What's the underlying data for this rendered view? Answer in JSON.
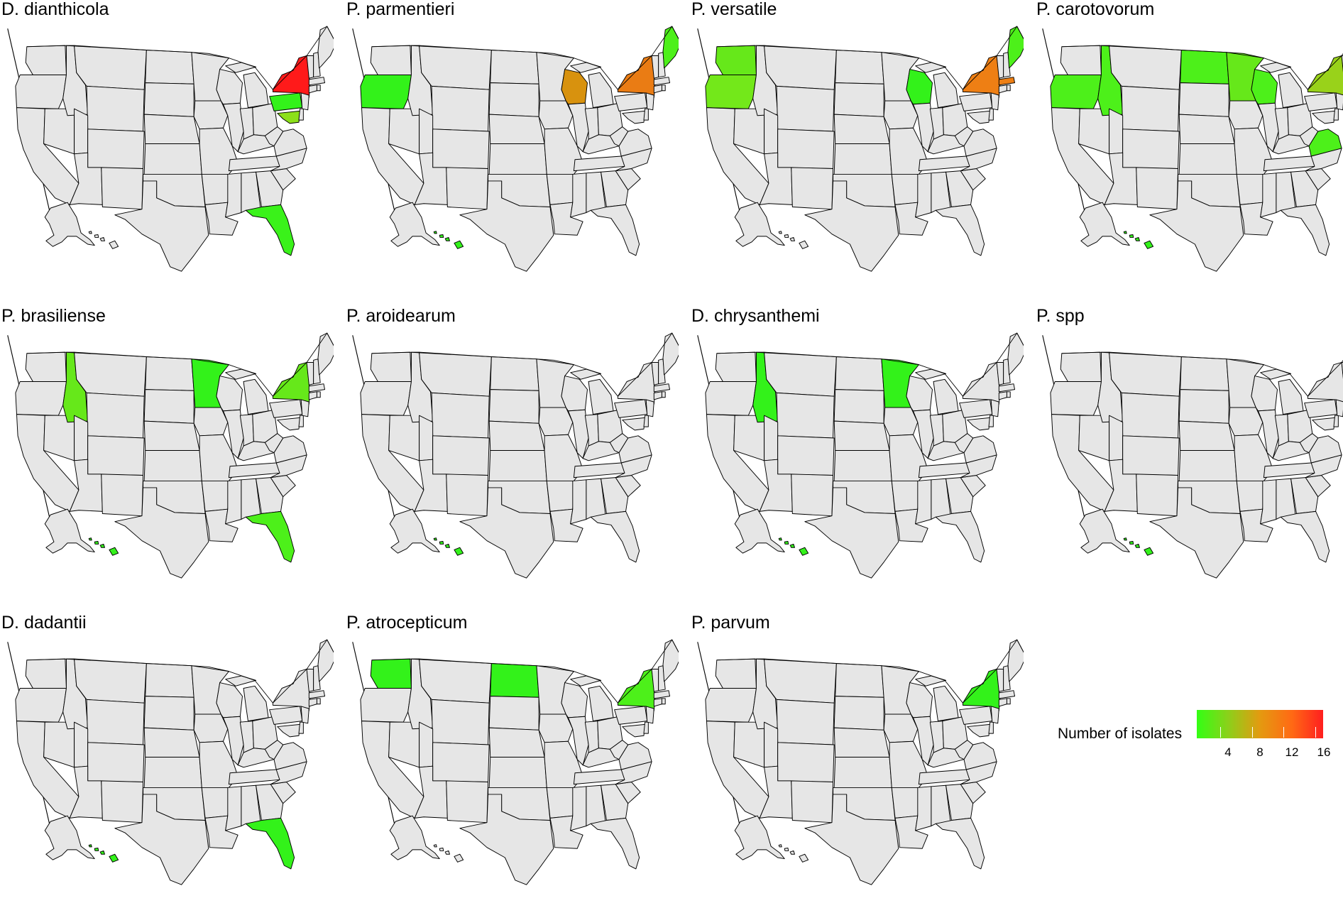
{
  "figure": {
    "panels": [
      {
        "title": "D. dianthicola",
        "states": {
          "NY": "#ff1a1a",
          "PA": "#33f21a",
          "MD": "#8ce01a",
          "FL": "#3af21a"
        }
      },
      {
        "title": "P. parmentieri",
        "states": {
          "OR": "#33f21a",
          "WI": "#d8920e",
          "NY": "#ea7c14",
          "ME": "#4df01a",
          "HI": "#33f21a"
        }
      },
      {
        "title": "P. versatile",
        "states": {
          "WA": "#66e81a",
          "OR": "#73e81a",
          "WI": "#33f21a",
          "NY": "#ee7f14",
          "MA": "#ee7f14",
          "ME": "#4df01a"
        }
      },
      {
        "title": "P. carotovorum",
        "states": {
          "OR": "#4df01a",
          "ID": "#4df01a",
          "ND": "#4df01a",
          "MN": "#66e81a",
          "WI": "#4df01a",
          "NY": "#99d21a",
          "VA": "#4df01a",
          "ME": "#4df01a",
          "HI": "#33f21a"
        }
      },
      {
        "title": "P. brasiliense",
        "states": {
          "ID": "#66e81a",
          "MN": "#33f21a",
          "NY": "#66e81a",
          "FL": "#4df01a",
          "HI": "#33f21a"
        }
      },
      {
        "title": "P. aroidearum",
        "states": {
          "HI": "#33f21a"
        }
      },
      {
        "title": "D. chrysanthemi",
        "states": {
          "ID": "#33f21a",
          "MN": "#33f21a",
          "HI": "#33f21a"
        }
      },
      {
        "title": "P. spp",
        "states": {
          "HI": "#33f21a"
        }
      },
      {
        "title": "D. dadantii",
        "states": {
          "FL": "#33f21a",
          "HI": "#33f21a"
        }
      },
      {
        "title": "P. atrocepticum",
        "states": {
          "WA": "#33f21a",
          "ND": "#33f21a",
          "NY": "#4df01a"
        }
      },
      {
        "title": "P. parvum",
        "states": {
          "NY": "#33f21a"
        }
      }
    ]
  },
  "legend": {
    "title": "Number of isolates",
    "ticks": [
      "4",
      "8",
      "12",
      "16"
    ],
    "min": 1,
    "max": 17,
    "colors": [
      "#33ff14",
      "#8cd01a",
      "#e49a10",
      "#ff6a14",
      "#ff1f1f"
    ]
  }
}
